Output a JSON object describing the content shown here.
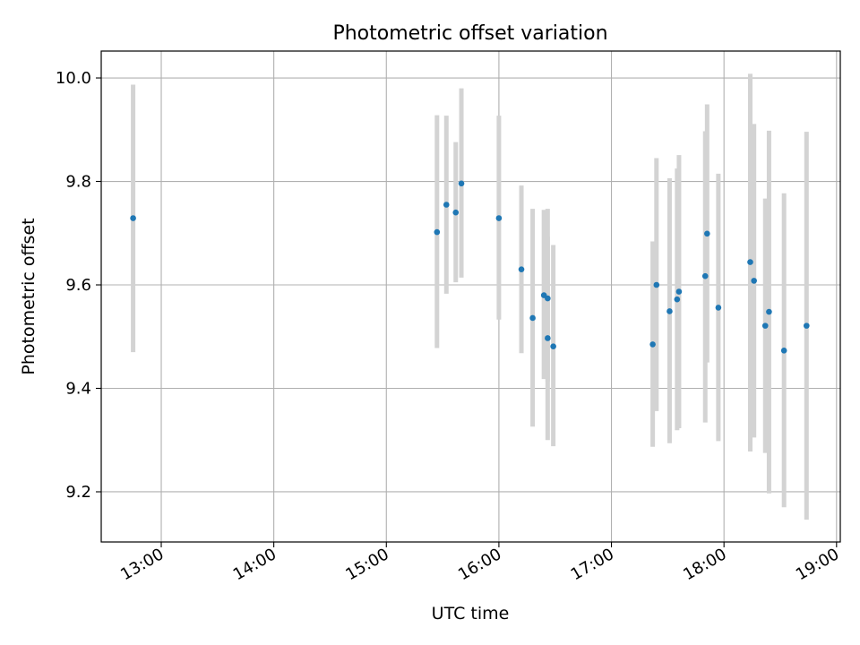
{
  "chart_data": {
    "type": "scatter",
    "title": "Photometric offset variation",
    "xlabel": "UTC time",
    "ylabel": "Photometric offset",
    "xlim": [
      "12:28",
      "19:02"
    ],
    "ylim": [
      9.103,
      10.052
    ],
    "x_ticks": [
      "13:00",
      "14:00",
      "15:00",
      "16:00",
      "17:00",
      "18:00",
      "19:00"
    ],
    "y_ticks": [
      9.2,
      9.4,
      9.6,
      9.8,
      10.0
    ],
    "y_tick_labels": [
      "9.2",
      "9.4",
      "9.6",
      "9.8",
      "10.0"
    ],
    "grid": true,
    "colors": {
      "points": "#1f77b4",
      "errorbars": "#d3d3d3",
      "grid": "#b0b0b0"
    },
    "points": [
      {
        "x": "12:45",
        "y": 9.729,
        "ylow": 9.47,
        "yhigh": 9.987
      },
      {
        "x": "15:27",
        "y": 9.702,
        "ylow": 9.478,
        "yhigh": 9.928
      },
      {
        "x": "15:32",
        "y": 9.755,
        "ylow": 9.583,
        "yhigh": 9.927
      },
      {
        "x": "15:37",
        "y": 9.74,
        "ylow": 9.605,
        "yhigh": 9.876
      },
      {
        "x": "15:40",
        "y": 9.796,
        "ylow": 9.614,
        "yhigh": 9.98
      },
      {
        "x": "16:00",
        "y": 9.729,
        "ylow": 9.533,
        "yhigh": 9.927
      },
      {
        "x": "16:12",
        "y": 9.63,
        "ylow": 9.468,
        "yhigh": 9.792
      },
      {
        "x": "16:18",
        "y": 9.536,
        "ylow": 9.326,
        "yhigh": 9.747
      },
      {
        "x": "16:24",
        "y": 9.58,
        "ylow": 9.418,
        "yhigh": 9.745
      },
      {
        "x": "16:26",
        "y": 9.574,
        "ylow": 9.413,
        "yhigh": 9.747
      },
      {
        "x": "16:26",
        "y": 9.497,
        "ylow": 9.3,
        "yhigh": 9.693
      },
      {
        "x": "16:29",
        "y": 9.481,
        "ylow": 9.288,
        "yhigh": 9.677
      },
      {
        "x": "17:22",
        "y": 9.485,
        "ylow": 9.287,
        "yhigh": 9.684
      },
      {
        "x": "17:24",
        "y": 9.6,
        "ylow": 9.356,
        "yhigh": 9.845
      },
      {
        "x": "17:31",
        "y": 9.549,
        "ylow": 9.294,
        "yhigh": 9.806
      },
      {
        "x": "17:35",
        "y": 9.572,
        "ylow": 9.319,
        "yhigh": 9.825
      },
      {
        "x": "17:36",
        "y": 9.587,
        "ylow": 9.323,
        "yhigh": 9.851
      },
      {
        "x": "17:50",
        "y": 9.617,
        "ylow": 9.334,
        "yhigh": 9.897
      },
      {
        "x": "17:51",
        "y": 9.699,
        "ylow": 9.45,
        "yhigh": 9.949
      },
      {
        "x": "17:57",
        "y": 9.556,
        "ylow": 9.298,
        "yhigh": 9.815
      },
      {
        "x": "18:14",
        "y": 9.644,
        "ylow": 9.278,
        "yhigh": 10.008
      },
      {
        "x": "18:16",
        "y": 9.608,
        "ylow": 9.305,
        "yhigh": 9.911
      },
      {
        "x": "18:22",
        "y": 9.521,
        "ylow": 9.275,
        "yhigh": 9.767
      },
      {
        "x": "18:24",
        "y": 9.548,
        "ylow": 9.197,
        "yhigh": 9.898
      },
      {
        "x": "18:32",
        "y": 9.473,
        "ylow": 9.17,
        "yhigh": 9.777
      },
      {
        "x": "18:44",
        "y": 9.521,
        "ylow": 9.146,
        "yhigh": 9.896
      }
    ]
  }
}
